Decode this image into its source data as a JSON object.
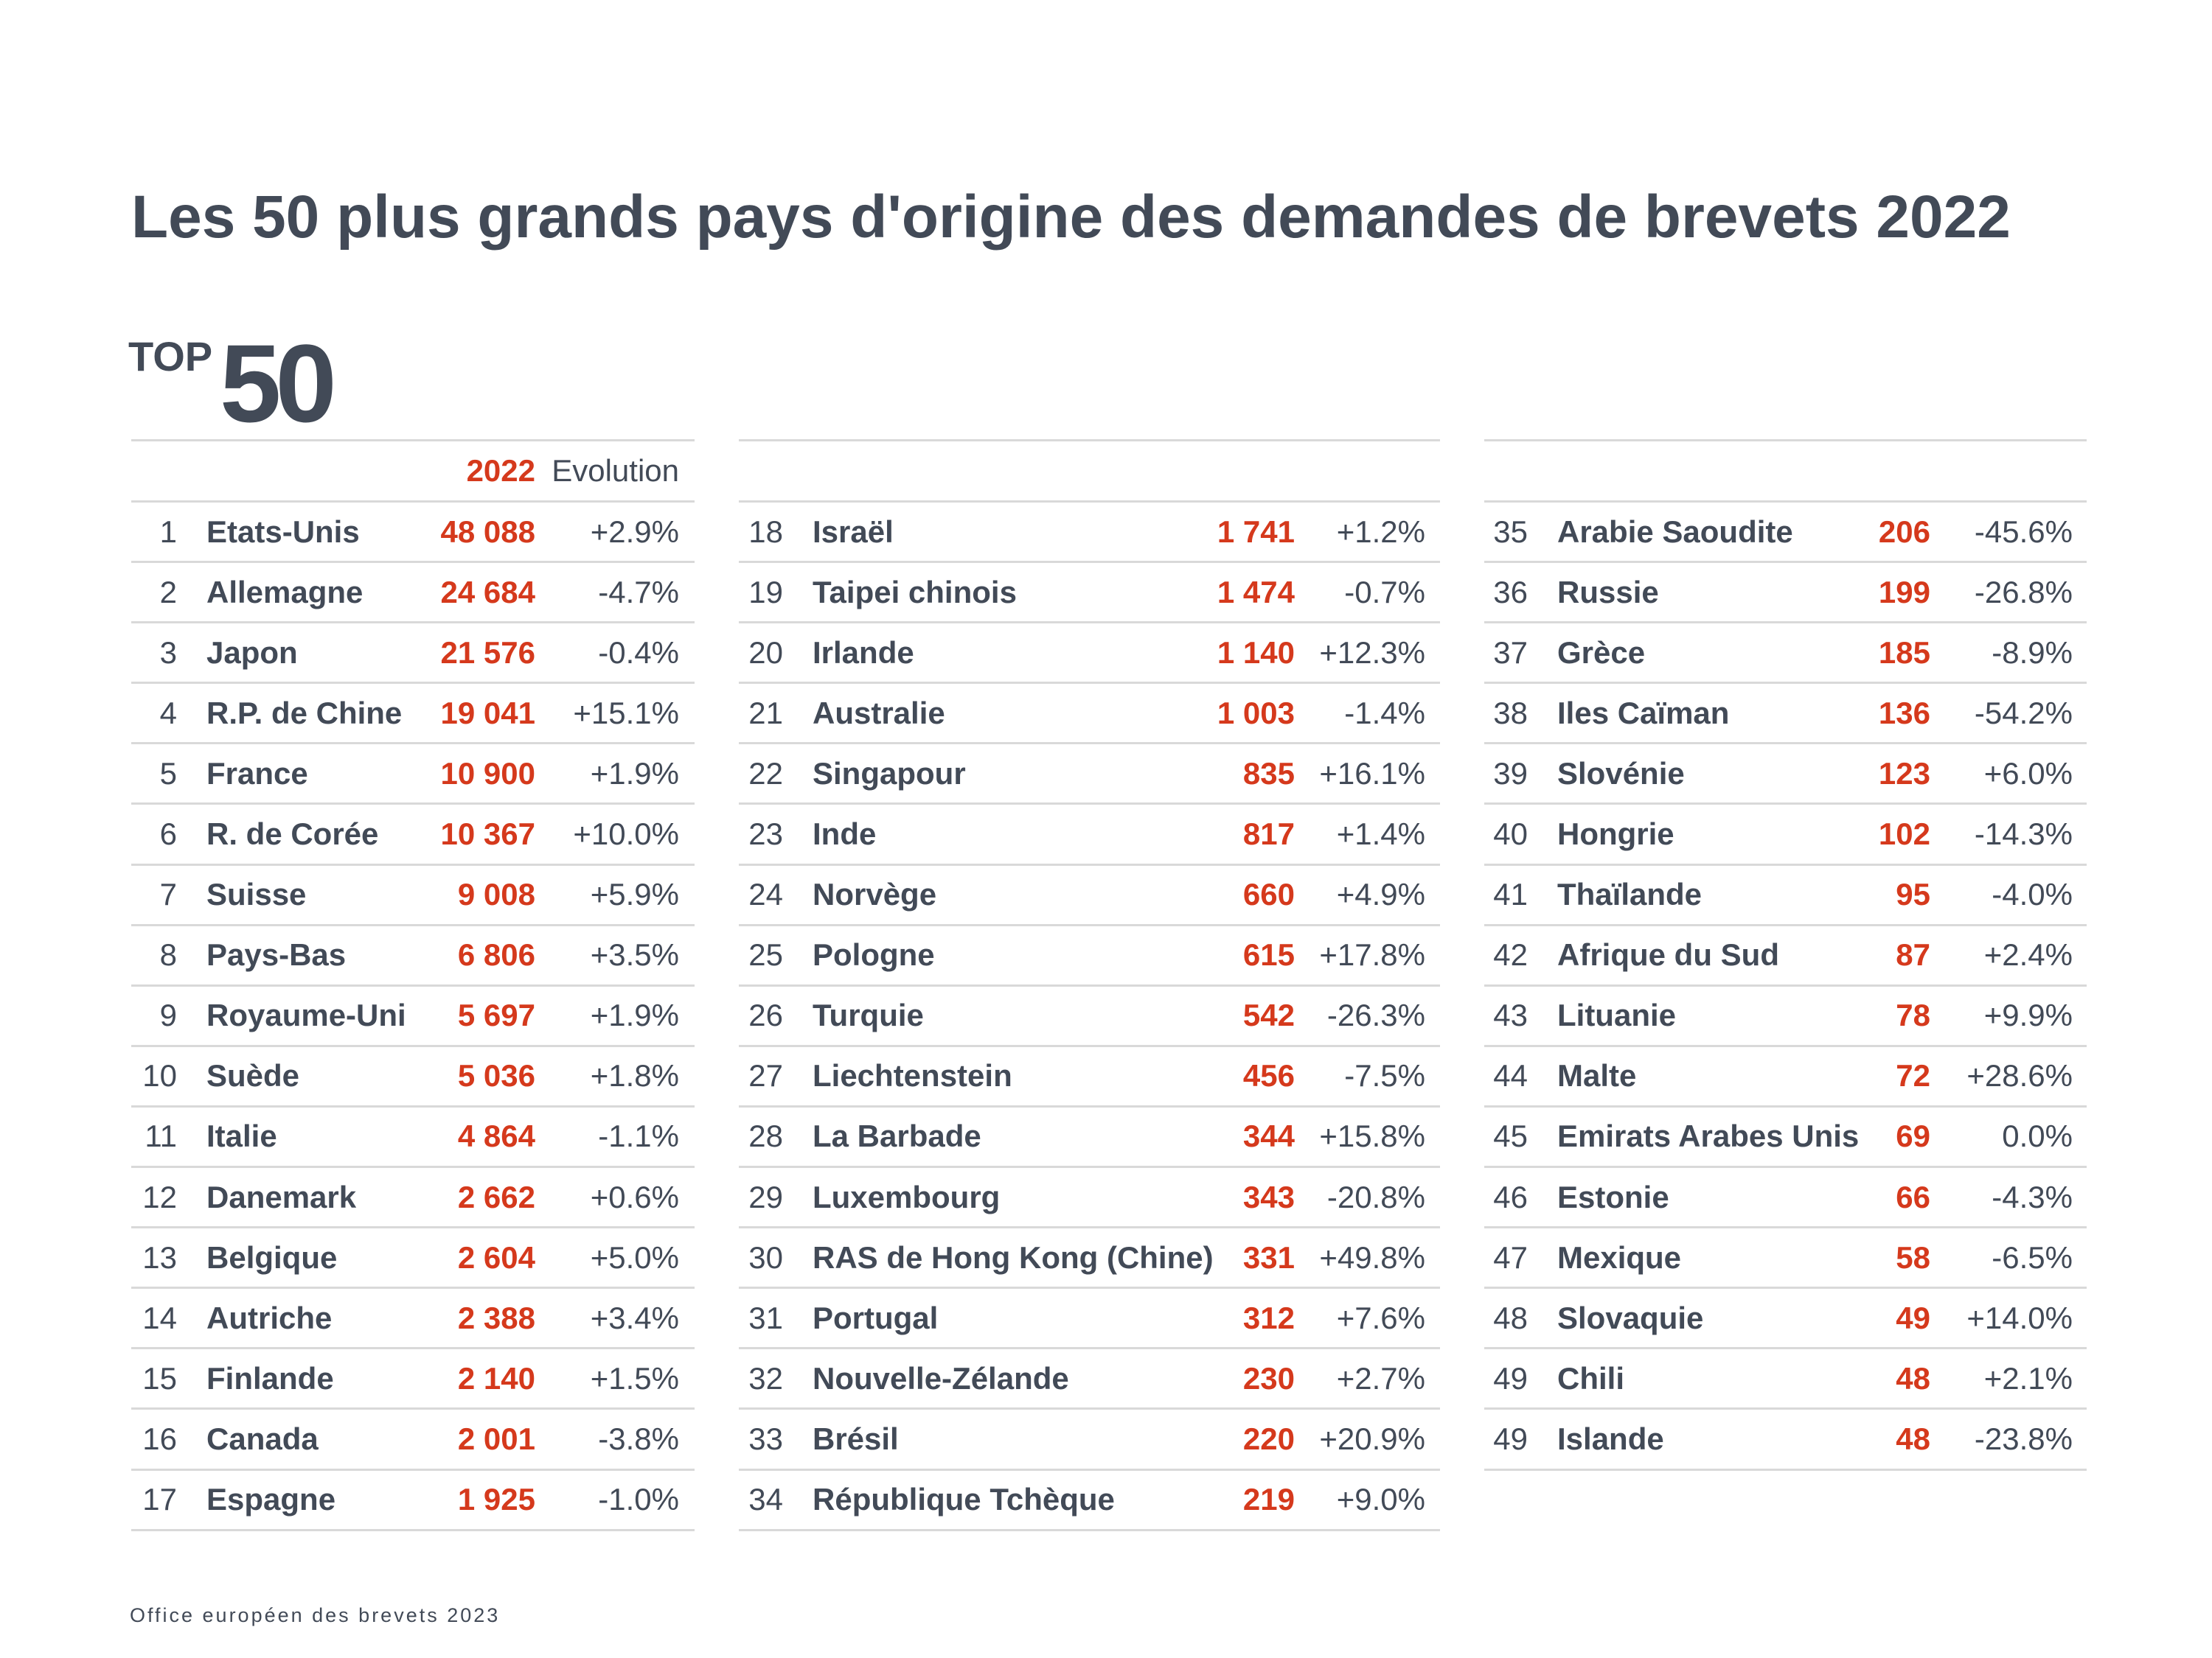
{
  "title": "Les 50 plus grands pays d'origine des demandes de brevets 2022",
  "badge": {
    "top": "TOP",
    "number": "50"
  },
  "header": {
    "year": "2022",
    "evolution": "Evolution"
  },
  "colors": {
    "accent_red": "#d5391c",
    "text_dark": "#424a57",
    "rule": "#d9d9d9"
  },
  "columns": [
    {
      "rows": [
        {
          "rank": "1",
          "country": "Etats-Unis",
          "value": "48 088",
          "evolution": "+2.9%"
        },
        {
          "rank": "2",
          "country": "Allemagne",
          "value": "24 684",
          "evolution": "-4.7%"
        },
        {
          "rank": "3",
          "country": "Japon",
          "value": "21 576",
          "evolution": "-0.4%"
        },
        {
          "rank": "4",
          "country": "R.P. de Chine",
          "value": "19 041",
          "evolution": "+15.1%"
        },
        {
          "rank": "5",
          "country": "France",
          "value": "10 900",
          "evolution": "+1.9%"
        },
        {
          "rank": "6",
          "country": "R. de Corée",
          "value": "10 367",
          "evolution": "+10.0%"
        },
        {
          "rank": "7",
          "country": "Suisse",
          "value": "9 008",
          "evolution": "+5.9%"
        },
        {
          "rank": "8",
          "country": "Pays-Bas",
          "value": "6 806",
          "evolution": "+3.5%"
        },
        {
          "rank": "9",
          "country": "Royaume-Uni",
          "value": "5 697",
          "evolution": "+1.9%"
        },
        {
          "rank": "10",
          "country": "Suède",
          "value": "5 036",
          "evolution": "+1.8%"
        },
        {
          "rank": "11",
          "country": "Italie",
          "value": "4 864",
          "evolution": "-1.1%"
        },
        {
          "rank": "12",
          "country": "Danemark",
          "value": "2 662",
          "evolution": "+0.6%"
        },
        {
          "rank": "13",
          "country": "Belgique",
          "value": "2 604",
          "evolution": "+5.0%"
        },
        {
          "rank": "14",
          "country": "Autriche",
          "value": "2 388",
          "evolution": "+3.4%"
        },
        {
          "rank": "15",
          "country": "Finlande",
          "value": "2 140",
          "evolution": "+1.5%"
        },
        {
          "rank": "16",
          "country": "Canada",
          "value": "2 001",
          "evolution": "-3.8%"
        },
        {
          "rank": "17",
          "country": "Espagne",
          "value": "1 925",
          "evolution": "-1.0%"
        }
      ]
    },
    {
      "rows": [
        {
          "rank": "18",
          "country": "Israël",
          "value": "1 741",
          "evolution": "+1.2%"
        },
        {
          "rank": "19",
          "country": "Taipei chinois",
          "value": "1 474",
          "evolution": "-0.7%"
        },
        {
          "rank": "20",
          "country": "Irlande",
          "value": "1 140",
          "evolution": "+12.3%"
        },
        {
          "rank": "21",
          "country": "Australie",
          "value": "1 003",
          "evolution": "-1.4%"
        },
        {
          "rank": "22",
          "country": "Singapour",
          "value": "835",
          "evolution": "+16.1%"
        },
        {
          "rank": "23",
          "country": "Inde",
          "value": "817",
          "evolution": "+1.4%"
        },
        {
          "rank": "24",
          "country": "Norvège",
          "value": "660",
          "evolution": "+4.9%"
        },
        {
          "rank": "25",
          "country": "Pologne",
          "value": "615",
          "evolution": "+17.8%"
        },
        {
          "rank": "26",
          "country": "Turquie",
          "value": "542",
          "evolution": "-26.3%"
        },
        {
          "rank": "27",
          "country": "Liechtenstein",
          "value": "456",
          "evolution": "-7.5%"
        },
        {
          "rank": "28",
          "country": "La Barbade",
          "value": "344",
          "evolution": "+15.8%"
        },
        {
          "rank": "29",
          "country": "Luxembourg",
          "value": "343",
          "evolution": "-20.8%"
        },
        {
          "rank": "30",
          "country": "RAS de Hong Kong (Chine)",
          "value": "331",
          "evolution": "+49.8%"
        },
        {
          "rank": "31",
          "country": "Portugal",
          "value": "312",
          "evolution": "+7.6%"
        },
        {
          "rank": "32",
          "country": "Nouvelle-Zélande",
          "value": "230",
          "evolution": "+2.7%"
        },
        {
          "rank": "33",
          "country": "Brésil",
          "value": "220",
          "evolution": "+20.9%"
        },
        {
          "rank": "34",
          "country": "République Tchèque",
          "value": "219",
          "evolution": "+9.0%"
        }
      ]
    },
    {
      "rows": [
        {
          "rank": "35",
          "country": "Arabie Saoudite",
          "value": "206",
          "evolution": "-45.6%"
        },
        {
          "rank": "36",
          "country": "Russie",
          "value": "199",
          "evolution": "-26.8%"
        },
        {
          "rank": "37",
          "country": "Grèce",
          "value": "185",
          "evolution": "-8.9%"
        },
        {
          "rank": "38",
          "country": "Iles Caïman",
          "value": "136",
          "evolution": "-54.2%"
        },
        {
          "rank": "39",
          "country": "Slovénie",
          "value": "123",
          "evolution": "+6.0%"
        },
        {
          "rank": "40",
          "country": "Hongrie",
          "value": "102",
          "evolution": "-14.3%"
        },
        {
          "rank": "41",
          "country": "Thaïlande",
          "value": "95",
          "evolution": "-4.0%"
        },
        {
          "rank": "42",
          "country": "Afrique du Sud",
          "value": "87",
          "evolution": "+2.4%"
        },
        {
          "rank": "43",
          "country": "Lituanie",
          "value": "78",
          "evolution": "+9.9%"
        },
        {
          "rank": "44",
          "country": "Malte",
          "value": "72",
          "evolution": "+28.6%"
        },
        {
          "rank": "45",
          "country": "Emirats Arabes Unis",
          "value": "69",
          "evolution": "0.0%"
        },
        {
          "rank": "46",
          "country": "Estonie",
          "value": "66",
          "evolution": "-4.3%"
        },
        {
          "rank": "47",
          "country": "Mexique",
          "value": "58",
          "evolution": "-6.5%"
        },
        {
          "rank": "48",
          "country": "Slovaquie",
          "value": "49",
          "evolution": "+14.0%"
        },
        {
          "rank": "49",
          "country": "Chili",
          "value": "48",
          "evolution": "+2.1%"
        },
        {
          "rank": "49",
          "country": "Islande",
          "value": "48",
          "evolution": "-23.8%"
        }
      ]
    }
  ],
  "footer": "Office européen des brevets 2023"
}
